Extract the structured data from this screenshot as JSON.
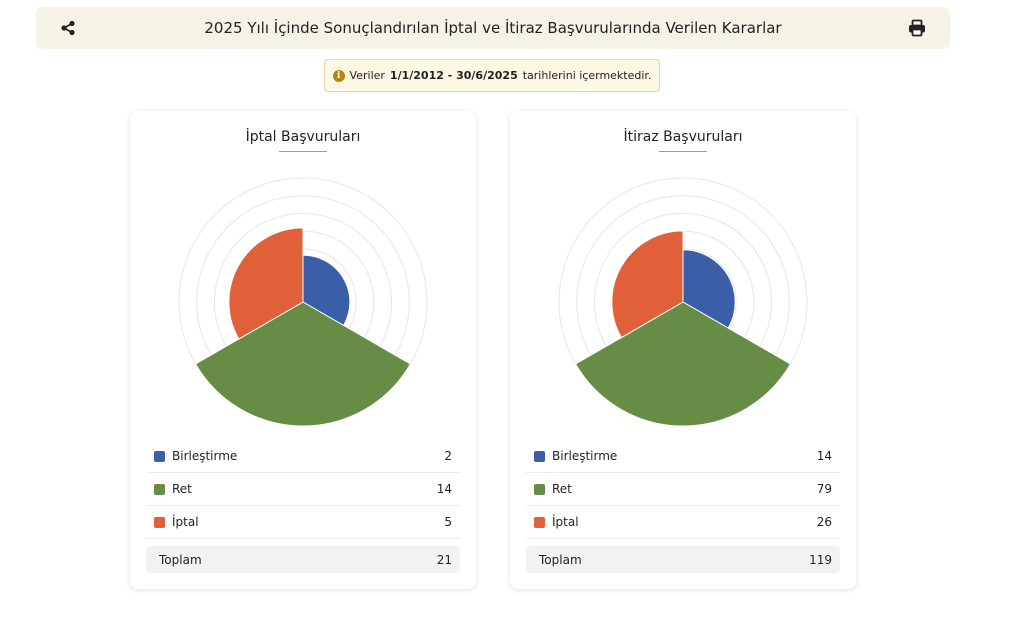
{
  "header": {
    "title": "2025 Yılı İçinde Sonuçlandırılan İptal ve İtiraz Başvurularında Verilen Kararlar",
    "share_icon": "share-icon",
    "print_icon": "print-icon"
  },
  "info": {
    "icon": "info-icon",
    "prefix": "Veriler",
    "range": "1/1/2012 - 30/6/2025",
    "suffix": "tarihlerini içermektedir."
  },
  "colors": {
    "Birleştirme": "#3a5ea8",
    "Ret": "#668c45",
    "İptal": "#e0603a"
  },
  "panels": [
    {
      "title": "İptal Başvuruları",
      "items": [
        {
          "label": "Birleştirme",
          "value": "2",
          "color": "#3a5ea8"
        },
        {
          "label": "Ret",
          "value": "14",
          "color": "#668c45"
        },
        {
          "label": "İptal",
          "value": "5",
          "color": "#e0603a"
        }
      ],
      "total_label": "Toplam",
      "total_value": "21"
    },
    {
      "title": "İtiraz Başvuruları",
      "items": [
        {
          "label": "Birleştirme",
          "value": "14",
          "color": "#3a5ea8"
        },
        {
          "label": "Ret",
          "value": "79",
          "color": "#668c45"
        },
        {
          "label": "İptal",
          "value": "26",
          "color": "#e0603a"
        }
      ],
      "total_label": "Toplam",
      "total_value": "119"
    }
  ],
  "chart_data": [
    {
      "type": "polar-area",
      "title": "İptal Başvuruları",
      "categories": [
        "Birleştirme",
        "Ret",
        "İptal"
      ],
      "values": [
        2,
        14,
        5
      ],
      "colors": [
        "#3a5ea8",
        "#668c45",
        "#e0603a"
      ]
    },
    {
      "type": "polar-area",
      "title": "İtiraz Başvuruları",
      "categories": [
        "Birleştirme",
        "Ret",
        "İptal"
      ],
      "values": [
        14,
        79,
        26
      ],
      "colors": [
        "#3a5ea8",
        "#668c45",
        "#e0603a"
      ]
    }
  ]
}
